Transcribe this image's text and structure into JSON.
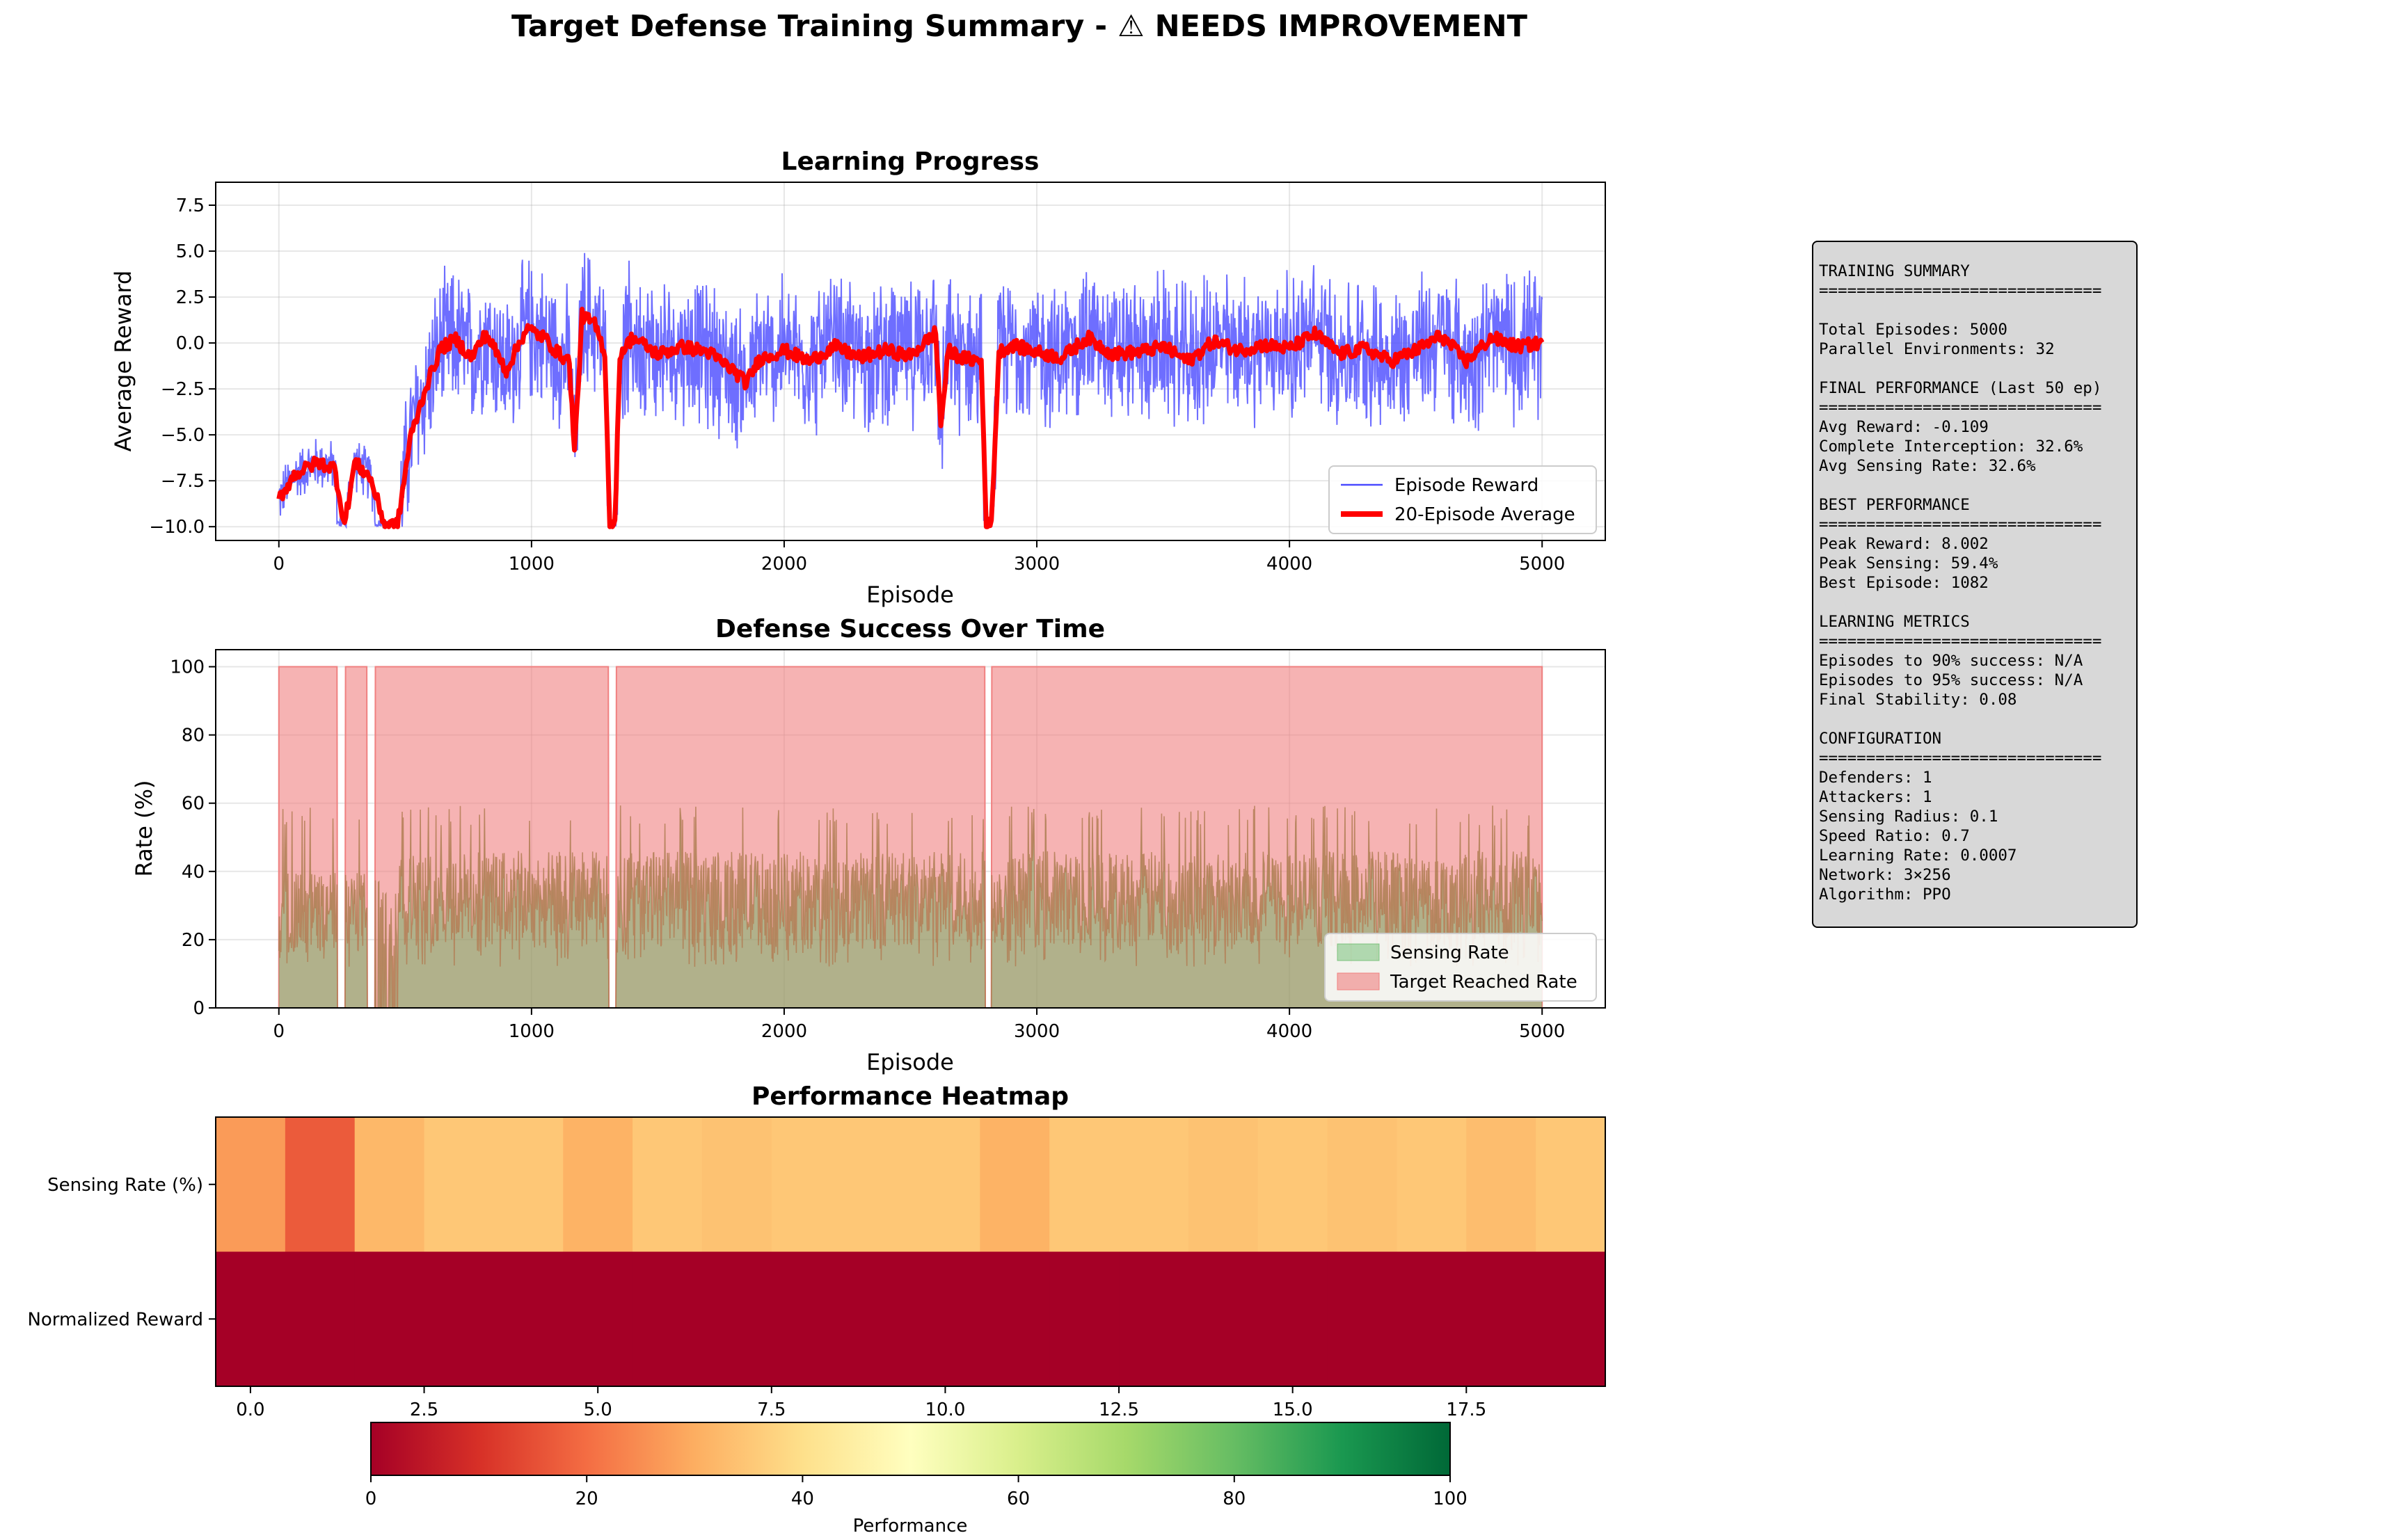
{
  "figure": {
    "title": "Target Defense Training Summary - ⚠ NEEDS IMPROVEMENT"
  },
  "chart_data": [
    {
      "type": "line",
      "title": "Learning Progress",
      "xlabel": "Episode",
      "ylabel": "Average Reward",
      "xlim": [
        -250,
        5250
      ],
      "ylim": [
        -10.75,
        8.75
      ],
      "xticks": [
        0,
        1000,
        2000,
        3000,
        4000,
        5000
      ],
      "xtick_labels": [
        "0",
        "1000",
        "2000",
        "3000",
        "4000",
        "5000"
      ],
      "yticks": [
        -10,
        -7.5,
        -5,
        -2.5,
        0,
        2.5,
        5,
        7.5
      ],
      "ytick_labels": [
        "−10.0",
        "−7.5",
        "−5.0",
        "−2.5",
        "0.0",
        "2.5",
        "5.0",
        "7.5"
      ],
      "grid": true,
      "legend": "lower-right",
      "series": [
        {
          "name": "Episode Reward",
          "color": "#4a4aff",
          "style": "noisy"
        },
        {
          "name": "20-Episode Average",
          "color": "#ff0000",
          "style": "bold"
        }
      ],
      "moving_average_keypoints": {
        "x": [
          0,
          60,
          150,
          220,
          260,
          300,
          360,
          420,
          470,
          520,
          580,
          640,
          700,
          760,
          820,
          900,
          980,
          1050,
          1100,
          1150,
          1170,
          1200,
          1250,
          1290,
          1310,
          1330,
          1350,
          1400,
          1500,
          1600,
          1700,
          1800,
          1850,
          1900,
          2000,
          2100,
          2200,
          2300,
          2400,
          2500,
          2600,
          2620,
          2650,
          2700,
          2780,
          2800,
          2820,
          2850,
          2900,
          3000,
          3100,
          3200,
          3300,
          3400,
          3500,
          3600,
          3700,
          3800,
          3900,
          4000,
          4100,
          4200,
          4300,
          4400,
          4500,
          4600,
          4700,
          4800,
          4900,
          5000
        ],
        "y": [
          -8.5,
          -7.2,
          -6.5,
          -6.8,
          -9.9,
          -6.5,
          -7.3,
          -9.9,
          -9.9,
          -5.2,
          -2.5,
          -0.3,
          0.2,
          -0.8,
          0.5,
          -1.5,
          0.8,
          0.3,
          -0.5,
          -1.0,
          -6.0,
          1.5,
          1.0,
          -0.5,
          -9.9,
          -9.9,
          -0.6,
          0.3,
          -0.6,
          -0.2,
          -0.5,
          -1.5,
          -2.2,
          -0.9,
          -0.4,
          -1.0,
          -0.2,
          -0.8,
          -0.4,
          -0.7,
          0.6,
          -4.5,
          -0.4,
          -0.8,
          -1.0,
          -9.9,
          -9.9,
          -0.5,
          -0.1,
          -0.5,
          -0.8,
          0.3,
          -0.6,
          -0.5,
          -0.2,
          -1.0,
          0.1,
          -0.4,
          -0.1,
          -0.3,
          0.5,
          -0.6,
          -0.3,
          -1.0,
          -0.4,
          0.4,
          -1.0,
          0.3,
          -0.2,
          0.0
        ]
      },
      "episode_reward_range": [
        -10,
        8.0
      ]
    },
    {
      "type": "area",
      "title": "Defense Success Over Time",
      "xlabel": "Episode",
      "ylabel": "Rate (%)",
      "xlim": [
        -250,
        5250
      ],
      "ylim": [
        0,
        105
      ],
      "xticks": [
        0,
        1000,
        2000,
        3000,
        4000,
        5000
      ],
      "xtick_labels": [
        "0",
        "1000",
        "2000",
        "3000",
        "4000",
        "5000"
      ],
      "yticks": [
        0,
        20,
        40,
        60,
        80,
        100
      ],
      "ytick_labels": [
        "0",
        "20",
        "40",
        "60",
        "80",
        "100"
      ],
      "grid": true,
      "legend": "lower-right",
      "series": [
        {
          "name": "Sensing Rate",
          "color": "#4caf50",
          "range_percent": [
            0,
            59.4
          ],
          "typical_percent": 32
        },
        {
          "name": "Target Reached Rate",
          "color": "#f08080",
          "values_percent": 100,
          "drops_to_zero_at_episodes": [
            240,
            350,
            1310,
            2800
          ]
        }
      ]
    },
    {
      "type": "heatmap",
      "title": "Performance Heatmap",
      "rows": [
        "Sensing Rate (%)",
        "Normalized Reward"
      ],
      "columns": [
        0,
        1,
        2,
        3,
        4,
        5,
        6,
        7,
        8,
        9,
        10,
        11,
        12,
        13,
        14,
        15,
        16,
        17,
        18,
        19
      ],
      "xticks": [
        0,
        2.5,
        5,
        7.5,
        10,
        12.5,
        15,
        17.5
      ],
      "xtick_labels": [
        "0.0",
        "2.5",
        "5.0",
        "7.5",
        "10.0",
        "12.5",
        "15.0",
        "17.5"
      ],
      "values": [
        [
          27,
          17,
          32,
          35,
          35,
          31,
          35,
          34,
          35,
          35,
          35,
          31,
          35,
          35,
          34,
          35,
          34,
          35,
          33,
          35
        ],
        [
          0,
          0,
          0,
          0,
          0,
          0,
          0,
          0,
          0,
          0,
          0,
          0,
          0,
          0,
          0,
          0,
          0,
          0,
          0,
          0
        ]
      ],
      "colormap": "RdYlGn",
      "colorbar": {
        "label": "Performance",
        "range": [
          0,
          100
        ],
        "ticks": [
          "0",
          "20",
          "40",
          "60",
          "80",
          "100"
        ]
      }
    }
  ],
  "summary": {
    "lines": [
      "TRAINING SUMMARY",
      "==============================",
      "",
      "Total Episodes: 5000",
      "Parallel Environments: 32",
      "",
      "FINAL PERFORMANCE (Last 50 ep)",
      "==============================",
      "Avg Reward: -0.109",
      "Complete Interception: 32.6%",
      "Avg Sensing Rate: 32.6%",
      "",
      "BEST PERFORMANCE",
      "==============================",
      "Peak Reward: 8.002",
      "Peak Sensing: 59.4%",
      "Best Episode: 1082",
      "",
      "LEARNING METRICS",
      "==============================",
      "Episodes to 90% success: N/A",
      "Episodes to 95% success: N/A",
      "Final Stability: 0.08",
      "",
      "CONFIGURATION",
      "==============================",
      "Defenders: 1",
      "Attackers: 1",
      "Sensing Radius: 0.1",
      "Speed Ratio: 0.7",
      "Learning Rate: 0.0007",
      "Network: 3×256",
      "Algorithm: PPO"
    ]
  }
}
